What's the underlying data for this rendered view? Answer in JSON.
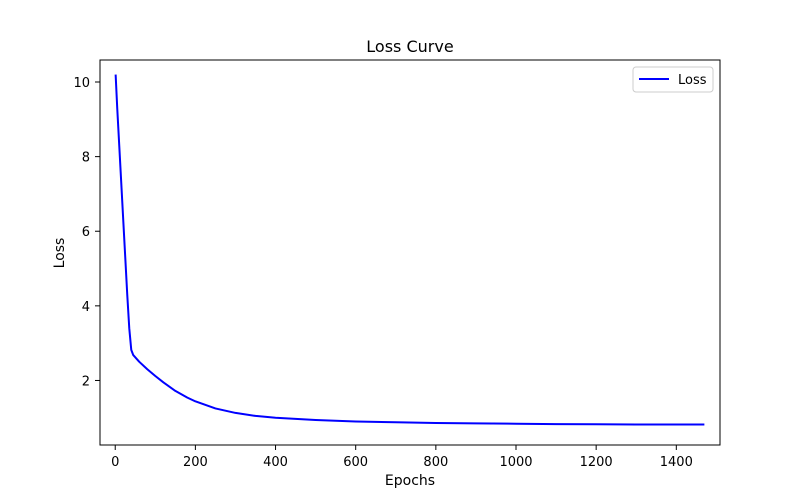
{
  "chart_data": {
    "type": "line",
    "title": "Loss Curve",
    "xlabel": "Epochs",
    "ylabel": "Loss",
    "xlim": [
      -38,
      1509
    ],
    "ylim": [
      0.27,
      10.59
    ],
    "xticks": [
      0,
      200,
      400,
      600,
      800,
      1000,
      1200,
      1400
    ],
    "yticks": [
      2,
      4,
      6,
      8,
      10
    ],
    "grid": false,
    "legend": "top-right",
    "series": [
      {
        "name": "Loss",
        "color": "#0000ff",
        "points": [
          [
            1,
            10.2
          ],
          [
            5,
            9.3
          ],
          [
            10,
            8.3
          ],
          [
            15,
            7.3
          ],
          [
            20,
            6.3
          ],
          [
            25,
            5.3
          ],
          [
            30,
            4.3
          ],
          [
            35,
            3.4
          ],
          [
            40,
            2.82
          ],
          [
            45,
            2.68
          ],
          [
            60,
            2.5
          ],
          [
            80,
            2.3
          ],
          [
            100,
            2.12
          ],
          [
            120,
            1.95
          ],
          [
            150,
            1.72
          ],
          [
            180,
            1.54
          ],
          [
            200,
            1.44
          ],
          [
            250,
            1.25
          ],
          [
            300,
            1.13
          ],
          [
            350,
            1.05
          ],
          [
            400,
            1.0
          ],
          [
            500,
            0.94
          ],
          [
            600,
            0.9
          ],
          [
            700,
            0.88
          ],
          [
            800,
            0.86
          ],
          [
            900,
            0.85
          ],
          [
            1000,
            0.84
          ],
          [
            1100,
            0.83
          ],
          [
            1200,
            0.825
          ],
          [
            1300,
            0.82
          ],
          [
            1400,
            0.82
          ],
          [
            1470,
            0.82
          ]
        ]
      }
    ]
  }
}
